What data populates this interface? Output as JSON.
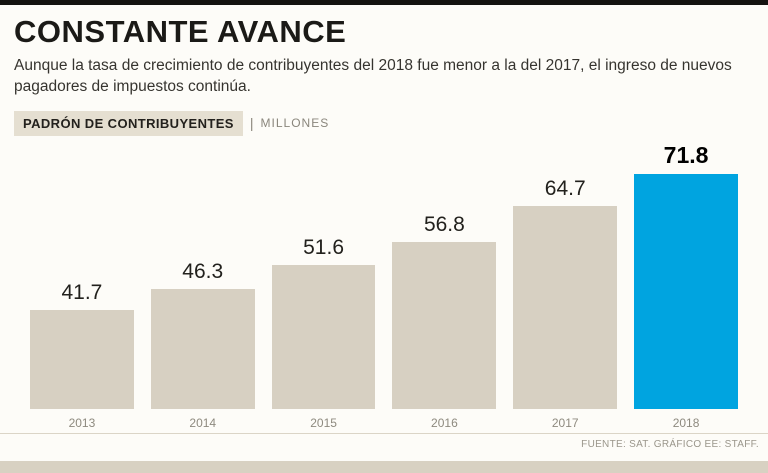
{
  "header": {
    "title": "CONSTANTE AVANCE",
    "subtitle": "Aunque la tasa de crecimiento de contribuyentes del 2018 fue menor a la del 2017, el ingreso de nuevos pagadores de impuestos continúa."
  },
  "chart_header": {
    "label": "PADRÓN DE CONTRIBUYENTES",
    "separator": "|",
    "unit": "MILLONES"
  },
  "chart_data": {
    "type": "bar",
    "title": "PADRÓN DE CONTRIBUYENTES (MILLONES)",
    "categories": [
      "2013",
      "2014",
      "2015",
      "2016",
      "2017",
      "2018"
    ],
    "values": [
      41.7,
      46.3,
      51.6,
      56.8,
      64.7,
      71.8
    ],
    "xlabel": "",
    "ylabel": "",
    "ylim": [
      20,
      75
    ],
    "axis_truncated": true,
    "grid": false,
    "legend": "none",
    "highlight_index": 5,
    "bar_color": "#d7d0c2",
    "highlight_color": "#00a4e0"
  },
  "footer": {
    "source": "FUENTE: SAT. GRÁFICO EE: STAFF."
  },
  "colors": {
    "top_border": "#141310",
    "kicker_bg": "#e5dfd1",
    "bottom_strip": "#d8d1c2",
    "text_dark": "#1b1a17",
    "text_muted": "#8e8a7f"
  }
}
